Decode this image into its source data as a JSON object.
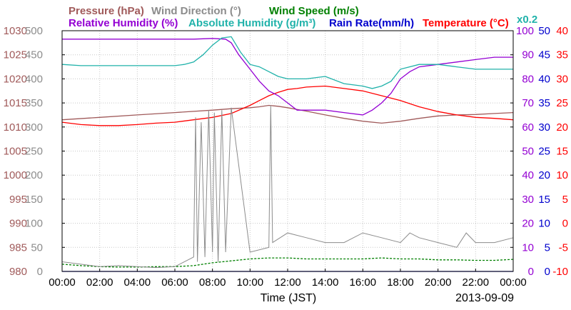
{
  "chart_data": {
    "type": "line",
    "date": "2013-09-09",
    "xlabel": "Time (JST)",
    "xticks": [
      "00:00",
      "02:00",
      "04:00",
      "06:00",
      "08:00",
      "10:00",
      "12:00",
      "14:00",
      "16:00",
      "18:00",
      "20:00",
      "22:00",
      "00:00"
    ],
    "xrange_hours": [
      0,
      24
    ],
    "grid": true,
    "legend": [
      {
        "label": "Pressure (hPa)",
        "color": "#a05a5a"
      },
      {
        "label": "Wind Direction (°)",
        "color": "#8c8c8c"
      },
      {
        "label": "Wind Speed (m/s)",
        "color": "#008000"
      },
      {
        "label": "Relative Humidity (%)",
        "color": "#9400d3"
      },
      {
        "label": "Absolute Humidity (g/m³)",
        "color": "#20b2aa"
      },
      {
        "label": "Rain Rate(mm/h)",
        "color": "#0000cd"
      },
      {
        "label": "Temperature (°C)",
        "color": "#ff0000"
      },
      {
        "label": "x0.2",
        "color": "#20b2aa"
      }
    ],
    "axes": {
      "pressure": {
        "color": "#a05a5a",
        "range": [
          980,
          1030
        ],
        "ticks": [
          "1030",
          "1025",
          "1020",
          "1015",
          "1010",
          "1005",
          "1000",
          "995",
          "990",
          "985",
          "980"
        ]
      },
      "wind_direction": {
        "color": "#8c8c8c",
        "range": [
          0,
          500
        ],
        "ticks": [
          "500",
          "450",
          "400",
          "350",
          "300",
          "250",
          "200",
          "150",
          "100",
          "50",
          "0"
        ]
      },
      "rel_humidity": {
        "color": "#9400d3",
        "range": [
          0,
          100
        ],
        "ticks": [
          "100",
          "90",
          "80",
          "70",
          "60",
          "50",
          "40",
          "30",
          "20",
          "10",
          "0"
        ]
      },
      "rain_rate": {
        "color": "#0000cd",
        "range": [
          0,
          50
        ],
        "ticks": [
          "50",
          "45",
          "40",
          "35",
          "30",
          "25",
          "20",
          "15",
          "10",
          "5",
          "0"
        ]
      },
      "temperature": {
        "color": "#ff0000",
        "range": [
          -10,
          40
        ],
        "ticks": [
          "40",
          "35",
          "30",
          "25",
          "20",
          "15",
          "10",
          "5",
          "0",
          "-5",
          "-10"
        ]
      }
    },
    "series": [
      {
        "name": "Pressure (hPa)",
        "color": "#a05a5a",
        "x": [
          0,
          2,
          4,
          6,
          8,
          9,
          10,
          10.5,
          11,
          11.5,
          12,
          13,
          14,
          15,
          16,
          17,
          18,
          19,
          20,
          21,
          22,
          23,
          24
        ],
        "y": [
          1011.5,
          1012,
          1012.5,
          1013,
          1013.5,
          1013.8,
          1014,
          1014.2,
          1014.5,
          1014.3,
          1014,
          1013.3,
          1012.5,
          1011.8,
          1011.2,
          1010.8,
          1011.2,
          1011.8,
          1012.3,
          1012.5,
          1012.6,
          1012.8,
          1013
        ]
      },
      {
        "name": "Temperature (°C)",
        "color": "#ff0000",
        "x": [
          0,
          1,
          2,
          3,
          4,
          5,
          6,
          7,
          8,
          9,
          10,
          10.5,
          11,
          11.5,
          12,
          12.5,
          13,
          14,
          15,
          16,
          17,
          18,
          19,
          20,
          21,
          22,
          23,
          24
        ],
        "y": [
          21,
          20.5,
          20.3,
          20.3,
          20.5,
          20.8,
          21,
          21.5,
          22,
          22.8,
          24.5,
          25.5,
          26.5,
          27.2,
          27.8,
          28,
          28.3,
          28.5,
          28,
          27.5,
          26.5,
          25.5,
          24.2,
          23.2,
          22.5,
          22,
          21.8,
          21.5
        ]
      },
      {
        "name": "Relative Humidity (%)",
        "color": "#9400d3",
        "x": [
          0,
          6,
          7,
          8,
          8.7,
          9,
          9.4,
          10,
          10.5,
          11,
          11.5,
          12,
          12.5,
          13,
          14,
          15,
          16,
          16.5,
          17,
          17.5,
          18,
          18.5,
          19,
          20,
          21,
          22,
          23,
          24
        ],
        "y": [
          96.5,
          96.5,
          96.5,
          96.8,
          96.5,
          95,
          90,
          84,
          79,
          75,
          73,
          70,
          67,
          67,
          67,
          66,
          65,
          67,
          70,
          74,
          80,
          83,
          85,
          86,
          87,
          88,
          89,
          89
        ]
      },
      {
        "name": "Absolute Humidity (g/m³)",
        "color": "#20b2aa",
        "x": [
          0,
          1,
          2,
          3,
          4,
          5,
          6,
          6.5,
          7,
          7.5,
          8,
          8.5,
          9,
          9.5,
          10,
          10.5,
          11,
          11.5,
          12,
          12.5,
          13,
          14,
          15,
          16,
          16.5,
          17,
          17.5,
          18,
          19,
          20,
          21,
          22,
          23,
          24
        ],
        "y": [
          86,
          85.5,
          85.5,
          85.5,
          85.5,
          85.5,
          85.5,
          86,
          87,
          90,
          94,
          97,
          97.5,
          91,
          86,
          85,
          83,
          81,
          80,
          80,
          80,
          81,
          78,
          77,
          76,
          77,
          79,
          84,
          86,
          86,
          85,
          84,
          84,
          84
        ]
      },
      {
        "name": "Wind Speed (m/s)",
        "color": "#008000",
        "x": [
          0,
          1,
          2,
          3,
          4,
          5,
          6,
          7,
          8,
          9,
          10,
          11,
          12,
          13,
          14,
          15,
          16,
          17,
          18,
          19,
          20,
          21,
          22,
          23,
          24
        ],
        "y": [
          1.5,
          1.2,
          1,
          0.9,
          0.9,
          1,
          1,
          1.2,
          1.8,
          2.2,
          2.6,
          2.8,
          2.8,
          2.6,
          2.6,
          2.6,
          2.6,
          2.8,
          2.6,
          2.6,
          2.4,
          2.4,
          2.3,
          2.3,
          2.5
        ]
      },
      {
        "name": "Rain Rate(mm/h)",
        "color": "#0000cd",
        "x": [
          0,
          24
        ],
        "y": [
          0,
          0
        ]
      },
      {
        "name": "Wind Direction (°)",
        "color": "#8c8c8c",
        "x": [
          0,
          1,
          2,
          3,
          4,
          5,
          6,
          7,
          7.1,
          7.2,
          7.4,
          7.6,
          7.8,
          8,
          8.1,
          8.3,
          8.5,
          8.7,
          9,
          10,
          11,
          11.1,
          11.2,
          12,
          13,
          14,
          15,
          16,
          17,
          18,
          18.5,
          19,
          20,
          21,
          21.5,
          22,
          23,
          24
        ],
        "y": [
          20,
          15,
          10,
          12,
          10,
          8,
          10,
          30,
          320,
          20,
          310,
          30,
          335,
          40,
          330,
          20,
          335,
          40,
          340,
          40,
          50,
          345,
          60,
          80,
          70,
          60,
          60,
          80,
          70,
          60,
          80,
          70,
          60,
          50,
          80,
          60,
          60,
          70
        ]
      }
    ]
  }
}
